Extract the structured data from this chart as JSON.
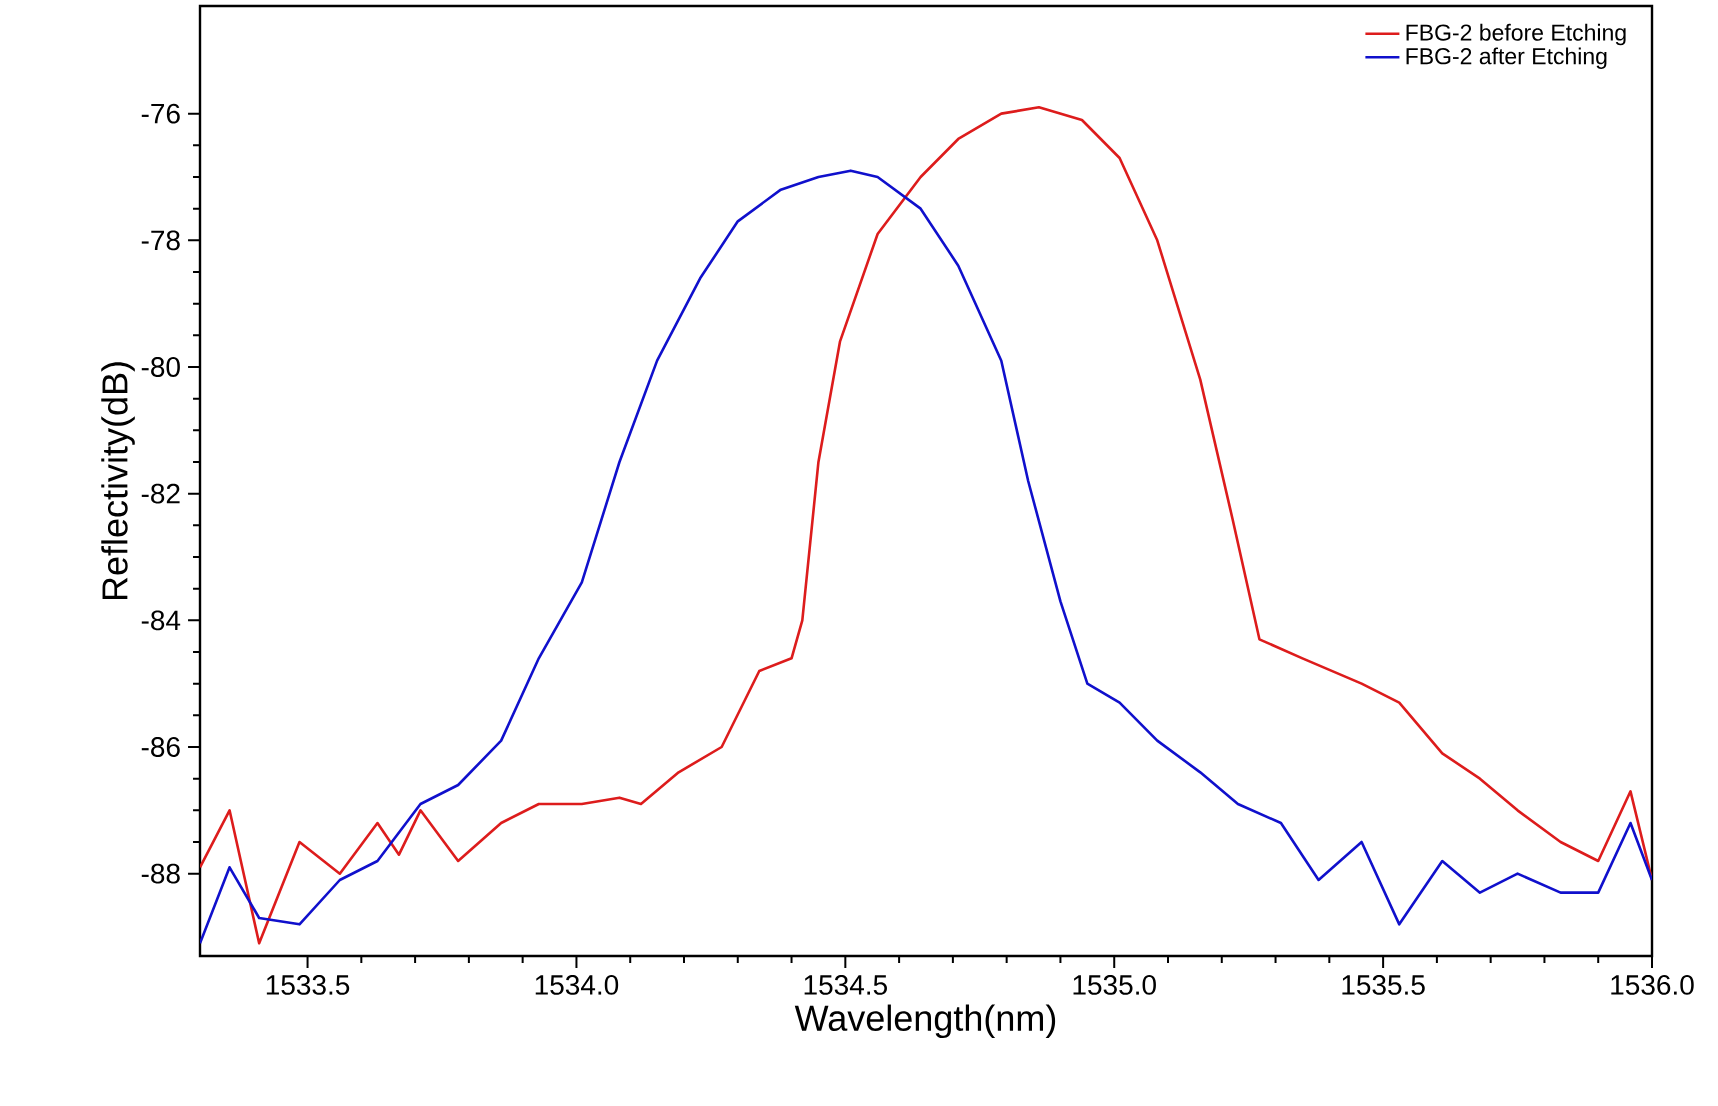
{
  "chart_data": {
    "type": "line",
    "xlabel": "Wavelength(nm)",
    "ylabel": "Reflectivity(dB)",
    "xlim": [
      1533.3,
      1536.0
    ],
    "ylim": [
      -89.3,
      -74.3
    ],
    "xticks": [
      {
        "value": 1533.5,
        "label": "1533.5"
      },
      {
        "value": 1534.0,
        "label": "1534.0"
      },
      {
        "value": 1534.5,
        "label": "1534.5"
      },
      {
        "value": 1535.0,
        "label": "1535.0"
      },
      {
        "value": 1535.5,
        "label": "1535.5"
      },
      {
        "value": 1536.0,
        "label": "1536.0"
      }
    ],
    "yticks": [
      -76,
      -78,
      -80,
      -82,
      -84,
      -86,
      -88
    ],
    "legend": "top right",
    "grid": false,
    "marker": "none",
    "line_style": "solid",
    "series": [
      {
        "name": "FBG-2 before Etching",
        "color": "#dd1c1c",
        "x": [
          1533.3,
          1533.355,
          1533.41,
          1533.485,
          1533.56,
          1533.63,
          1533.67,
          1533.71,
          1533.78,
          1533.86,
          1533.93,
          1534.01,
          1534.08,
          1534.12,
          1534.19,
          1534.27,
          1534.34,
          1534.4,
          1534.42,
          1534.45,
          1534.49,
          1534.56,
          1534.64,
          1534.71,
          1534.79,
          1534.86,
          1534.94,
          1535.01,
          1535.08,
          1535.16,
          1535.22,
          1535.27,
          1535.35,
          1535.46,
          1535.53,
          1535.61,
          1535.68,
          1535.75,
          1535.83,
          1535.9,
          1535.96,
          1536.0
        ],
        "values": [
          -87.9,
          -87.0,
          -89.1,
          -87.5,
          -88.0,
          -87.2,
          -87.7,
          -87.0,
          -87.8,
          -87.2,
          -86.9,
          -86.9,
          -86.8,
          -86.9,
          -86.4,
          -86.0,
          -84.8,
          -84.6,
          -84.0,
          -81.5,
          -79.6,
          -77.9,
          -77.0,
          -76.4,
          -76.0,
          -75.9,
          -76.1,
          -76.7,
          -78.0,
          -80.2,
          -82.4,
          -84.3,
          -84.6,
          -85.0,
          -85.3,
          -86.1,
          -86.5,
          -87.0,
          -87.5,
          -87.8,
          -86.7,
          -88.1
        ]
      },
      {
        "name": "FBG-2 after Etching",
        "color": "#1010cc",
        "x": [
          1533.3,
          1533.355,
          1533.41,
          1533.485,
          1533.56,
          1533.63,
          1533.71,
          1533.78,
          1533.86,
          1533.93,
          1534.01,
          1534.08,
          1534.15,
          1534.23,
          1534.3,
          1534.38,
          1534.45,
          1534.51,
          1534.56,
          1534.64,
          1534.71,
          1534.79,
          1534.84,
          1534.9,
          1534.95,
          1535.01,
          1535.08,
          1535.16,
          1535.23,
          1535.31,
          1535.38,
          1535.46,
          1535.53,
          1535.61,
          1535.68,
          1535.75,
          1535.83,
          1535.9,
          1535.96,
          1536.0
        ],
        "values": [
          -89.1,
          -87.9,
          -88.7,
          -88.8,
          -88.1,
          -87.8,
          -86.9,
          -86.6,
          -85.9,
          -84.6,
          -83.4,
          -81.5,
          -79.9,
          -78.6,
          -77.7,
          -77.2,
          -77.0,
          -76.9,
          -77.0,
          -77.5,
          -78.4,
          -79.9,
          -81.8,
          -83.7,
          -85.0,
          -85.3,
          -85.9,
          -86.4,
          -86.9,
          -87.2,
          -88.1,
          -87.5,
          -88.8,
          -87.8,
          -88.3,
          -88.0,
          -88.3,
          -88.3,
          -87.2,
          -88.1
        ]
      }
    ]
  }
}
